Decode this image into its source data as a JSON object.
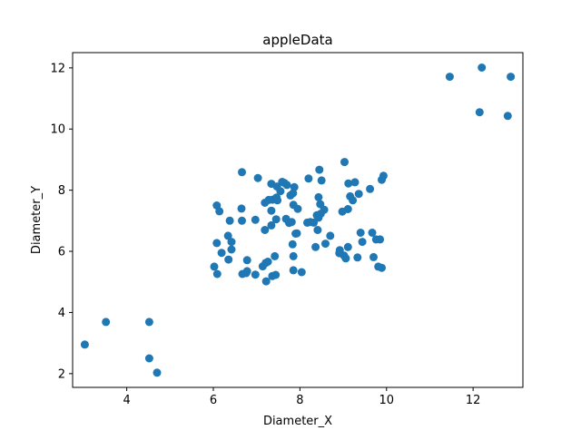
{
  "chart_data": {
    "type": "scatter",
    "title": "appleData",
    "xlabel": "Diameter_X",
    "ylabel": "Diameter_Y",
    "xlim": [
      2.75,
      13.15
    ],
    "ylim": [
      1.55,
      12.5
    ],
    "xticks": [
      "4",
      "6",
      "8",
      "10",
      "12"
    ],
    "yticks": [
      "2",
      "4",
      "6",
      "8",
      "10",
      "12"
    ],
    "marker_color": "#1f77b4",
    "grid": false,
    "points": [
      [
        3.03,
        2.95
      ],
      [
        3.52,
        3.69
      ],
      [
        4.52,
        3.69
      ],
      [
        4.52,
        2.5
      ],
      [
        4.7,
        2.03
      ],
      [
        11.46,
        11.71
      ],
      [
        12.2,
        12.01
      ],
      [
        12.87,
        11.71
      ],
      [
        12.15,
        10.55
      ],
      [
        12.8,
        10.43
      ],
      [
        6.66,
        8.59
      ],
      [
        7.03,
        8.4
      ],
      [
        9.03,
        8.92
      ],
      [
        8.45,
        8.67
      ],
      [
        8.2,
        8.38
      ],
      [
        8.5,
        8.32
      ],
      [
        9.12,
        8.22
      ],
      [
        9.27,
        8.26
      ],
      [
        9.93,
        8.47
      ],
      [
        9.89,
        8.34
      ],
      [
        9.62,
        8.04
      ],
      [
        9.36,
        7.88
      ],
      [
        9.16,
        7.8
      ],
      [
        9.22,
        7.67
      ],
      [
        8.43,
        7.77
      ],
      [
        8.47,
        7.54
      ],
      [
        8.56,
        7.36
      ],
      [
        8.48,
        7.23
      ],
      [
        9.11,
        7.38
      ],
      [
        8.98,
        7.3
      ],
      [
        7.34,
        8.21
      ],
      [
        7.47,
        8.12
      ],
      [
        7.59,
        8.27
      ],
      [
        7.64,
        8.24
      ],
      [
        7.7,
        8.17
      ],
      [
        7.87,
        8.1
      ],
      [
        7.55,
        7.97
      ],
      [
        7.78,
        7.83
      ],
      [
        7.84,
        7.9
      ],
      [
        7.46,
        7.76
      ],
      [
        7.37,
        7.69
      ],
      [
        7.28,
        7.68
      ],
      [
        7.19,
        7.59
      ],
      [
        7.48,
        7.67
      ],
      [
        7.85,
        7.52
      ],
      [
        7.95,
        7.39
      ],
      [
        7.34,
        7.33
      ],
      [
        7.45,
        7.05
      ],
      [
        7.68,
        7.06
      ],
      [
        7.75,
        6.93
      ],
      [
        7.81,
        6.96
      ],
      [
        7.34,
        6.85
      ],
      [
        7.19,
        6.7
      ],
      [
        6.08,
        7.5
      ],
      [
        6.14,
        7.31
      ],
      [
        6.65,
        7.4
      ],
      [
        6.38,
        7.0
      ],
      [
        6.66,
        7.0
      ],
      [
        6.97,
        7.03
      ],
      [
        6.02,
        5.5
      ],
      [
        6.08,
        6.27
      ],
      [
        6.34,
        6.51
      ],
      [
        6.42,
        6.31
      ],
      [
        6.42,
        6.06
      ],
      [
        6.19,
        5.95
      ],
      [
        6.35,
        5.73
      ],
      [
        6.09,
        5.26
      ],
      [
        6.78,
        5.71
      ],
      [
        6.67,
        5.26
      ],
      [
        6.76,
        5.29
      ],
      [
        6.78,
        5.35
      ],
      [
        6.97,
        5.24
      ],
      [
        7.14,
        5.51
      ],
      [
        7.21,
        5.62
      ],
      [
        7.26,
        5.66
      ],
      [
        7.22,
        5.02
      ],
      [
        7.36,
        5.19
      ],
      [
        7.44,
        5.23
      ],
      [
        7.42,
        5.84
      ],
      [
        7.85,
        5.84
      ],
      [
        7.83,
        6.23
      ],
      [
        7.85,
        5.38
      ],
      [
        8.04,
        5.32
      ],
      [
        7.9,
        6.58
      ],
      [
        7.93,
        6.59
      ],
      [
        8.17,
        6.94
      ],
      [
        8.32,
        6.94
      ],
      [
        8.41,
        6.7
      ],
      [
        8.36,
        6.14
      ],
      [
        8.59,
        6.25
      ],
      [
        8.7,
        6.51
      ],
      [
        8.91,
        5.94
      ],
      [
        8.92,
        6.04
      ],
      [
        9.02,
        5.86
      ],
      [
        9.06,
        5.77
      ],
      [
        9.11,
        6.14
      ],
      [
        9.33,
        5.8
      ],
      [
        9.4,
        6.61
      ],
      [
        9.44,
        6.31
      ],
      [
        9.67,
        6.61
      ],
      [
        9.76,
        6.39
      ],
      [
        9.85,
        6.39
      ],
      [
        9.7,
        5.81
      ],
      [
        9.81,
        5.5
      ],
      [
        9.89,
        5.46
      ],
      [
        8.43,
        7.1
      ],
      [
        8.39,
        7.18
      ],
      [
        8.24,
        6.96
      ]
    ]
  }
}
